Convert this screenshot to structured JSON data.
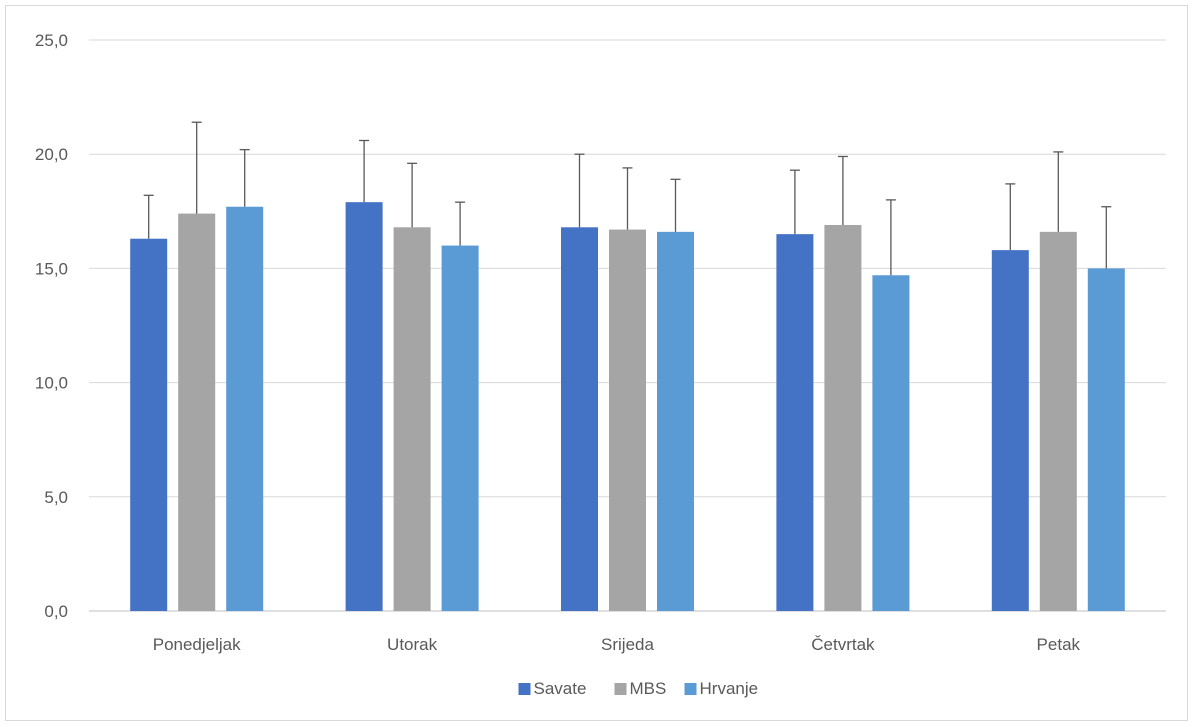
{
  "chart_data": {
    "type": "bar",
    "categories": [
      "Ponedjeljak",
      "Utorak",
      "Srijeda",
      "Četvrtak",
      "Petak"
    ],
    "series": [
      {
        "name": "Savate",
        "color": "#4472C4",
        "values": [
          16.3,
          17.9,
          16.8,
          16.5,
          15.8
        ],
        "error": [
          1.9,
          2.7,
          3.2,
          2.8,
          2.9
        ]
      },
      {
        "name": "MBS",
        "color": "#A5A5A5",
        "values": [
          17.4,
          16.8,
          16.7,
          16.9,
          16.6
        ],
        "error": [
          4.0,
          2.8,
          2.7,
          3.0,
          3.5
        ]
      },
      {
        "name": "Hrvanje",
        "color": "#5B9BD5",
        "values": [
          17.7,
          16.0,
          16.6,
          14.7,
          15.0
        ],
        "error": [
          2.5,
          1.9,
          2.3,
          3.3,
          2.7
        ]
      }
    ],
    "y_ticks": [
      "0,0",
      "5,0",
      "10,0",
      "15,0",
      "20,0",
      "25,0"
    ],
    "ylim": [
      0,
      25
    ],
    "grid": true,
    "legend_position": "bottom",
    "title": "",
    "xlabel": "",
    "ylabel": ""
  }
}
